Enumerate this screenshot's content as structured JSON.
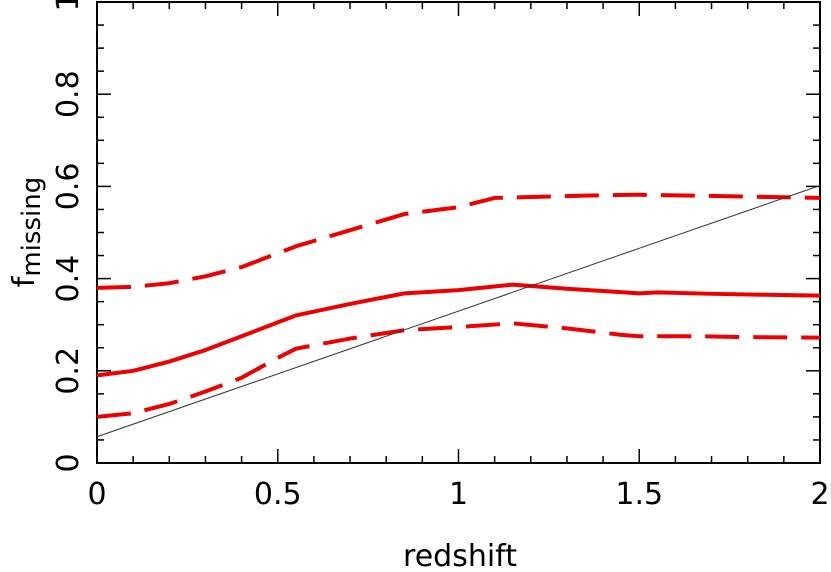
{
  "chart_data": {
    "type": "line",
    "xlabel": "redshift",
    "ylabel": {
      "main": "f",
      "subscript": "missing"
    },
    "xlim": [
      0,
      2
    ],
    "ylim": [
      0,
      1
    ],
    "x_ticks": [
      "0",
      "0.5",
      "1",
      "1.5",
      "2"
    ],
    "y_ticks": [
      "0",
      "0.2",
      "0.4",
      "0.6",
      "0.8",
      "1"
    ],
    "grid": false,
    "series": [
      {
        "style": "solid",
        "color": "#ee0000",
        "x": [
          0,
          0.1,
          0.2,
          0.3,
          0.4,
          0.5,
          0.55,
          0.7,
          0.85,
          1.0,
          1.15,
          1.3,
          1.5,
          1.55,
          1.7,
          1.85,
          2.0
        ],
        "y": [
          0.19,
          0.2,
          0.22,
          0.245,
          0.275,
          0.305,
          0.32,
          0.345,
          0.368,
          0.375,
          0.387,
          0.378,
          0.368,
          0.37,
          0.367,
          0.365,
          0.363
        ]
      },
      {
        "style": "dashed",
        "color": "#ee0000",
        "x": [
          0,
          0.1,
          0.2,
          0.3,
          0.4,
          0.5,
          0.55,
          0.7,
          0.85,
          1.0,
          1.1,
          1.2,
          1.35,
          1.5,
          1.65,
          1.8,
          2.0
        ],
        "y": [
          0.38,
          0.382,
          0.39,
          0.405,
          0.425,
          0.455,
          0.47,
          0.505,
          0.54,
          0.555,
          0.575,
          0.577,
          0.58,
          0.582,
          0.58,
          0.578,
          0.575
        ]
      },
      {
        "style": "dashed",
        "color": "#ee0000",
        "x": [
          0,
          0.1,
          0.2,
          0.3,
          0.4,
          0.5,
          0.55,
          0.7,
          0.85,
          1.0,
          1.15,
          1.3,
          1.45,
          1.5,
          1.65,
          1.8,
          2.0
        ],
        "y": [
          0.1,
          0.108,
          0.128,
          0.155,
          0.185,
          0.228,
          0.248,
          0.27,
          0.288,
          0.295,
          0.303,
          0.292,
          0.278,
          0.275,
          0.275,
          0.273,
          0.272
        ]
      },
      {
        "style": "thin",
        "color": "#333333",
        "x": [
          0,
          2
        ],
        "y": [
          0.057,
          0.602
        ]
      }
    ]
  }
}
